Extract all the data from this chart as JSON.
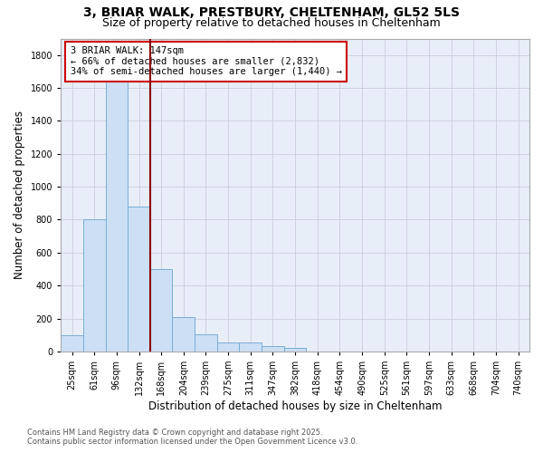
{
  "title_line1": "3, BRIAR WALK, PRESTBURY, CHELTENHAM, GL52 5LS",
  "title_line2": "Size of property relative to detached houses in Cheltenham",
  "xlabel": "Distribution of detached houses by size in Cheltenham",
  "ylabel": "Number of detached properties",
  "categories": [
    "25sqm",
    "61sqm",
    "96sqm",
    "132sqm",
    "168sqm",
    "204sqm",
    "239sqm",
    "275sqm",
    "311sqm",
    "347sqm",
    "382sqm",
    "418sqm",
    "454sqm",
    "490sqm",
    "525sqm",
    "561sqm",
    "597sqm",
    "633sqm",
    "668sqm",
    "704sqm",
    "740sqm"
  ],
  "values": [
    100,
    800,
    1650,
    880,
    500,
    210,
    105,
    55,
    55,
    30,
    20,
    0,
    0,
    0,
    0,
    0,
    0,
    0,
    0,
    0,
    0
  ],
  "bar_color": "#ccdff5",
  "bar_edge_color": "#7aaed6",
  "vline_color": "#8b0000",
  "annotation_text": "3 BRIAR WALK: 147sqm\n← 66% of detached houses are smaller (2,832)\n34% of semi-detached houses are larger (1,440) →",
  "annotation_box_color": "white",
  "annotation_box_edge": "#cc0000",
  "ylim": [
    0,
    1900
  ],
  "yticks": [
    0,
    200,
    400,
    600,
    800,
    1000,
    1200,
    1400,
    1600,
    1800
  ],
  "grid_color": "#ccccdd",
  "bg_color": "#e8eef8",
  "footer_line1": "Contains HM Land Registry data © Crown copyright and database right 2025.",
  "footer_line2": "Contains public sector information licensed under the Open Government Licence v3.0.",
  "title_fontsize": 10,
  "subtitle_fontsize": 9,
  "tick_fontsize": 7,
  "xlabel_fontsize": 8.5,
  "ylabel_fontsize": 8.5,
  "annotation_fontsize": 7.5,
  "footer_fontsize": 6
}
